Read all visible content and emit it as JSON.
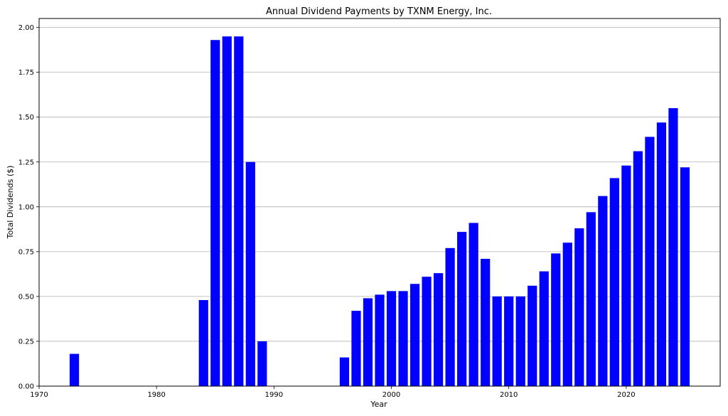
{
  "chart_data": {
    "type": "bar",
    "title": "Annual Dividend Payments by TXNM Energy, Inc.",
    "xlabel": "Year",
    "ylabel": "Total Dividends ($)",
    "xlim": [
      1970,
      2028
    ],
    "ylim": [
      0,
      2.05
    ],
    "xticks": [
      "1970",
      "1980",
      "1990",
      "2000",
      "2010",
      "2020"
    ],
    "yticks": [
      "0.00",
      "0.25",
      "0.50",
      "0.75",
      "1.00",
      "1.25",
      "1.50",
      "1.75",
      "2.00"
    ],
    "grid": "y",
    "bar_color": "#0000ff",
    "x": [
      1973,
      1984,
      1985,
      1986,
      1987,
      1988,
      1989,
      1996,
      1997,
      1998,
      1999,
      2000,
      2001,
      2002,
      2003,
      2004,
      2005,
      2006,
      2007,
      2008,
      2009,
      2010,
      2011,
      2012,
      2013,
      2014,
      2015,
      2016,
      2017,
      2018,
      2019,
      2020,
      2021,
      2022,
      2023,
      2024,
      2025
    ],
    "values": [
      0.18,
      0.48,
      1.93,
      1.95,
      1.95,
      1.25,
      0.25,
      0.16,
      0.42,
      0.49,
      0.51,
      0.53,
      0.53,
      0.57,
      0.61,
      0.63,
      0.77,
      0.86,
      0.91,
      0.71,
      0.5,
      0.5,
      0.5,
      0.56,
      0.64,
      0.74,
      0.8,
      0.88,
      0.97,
      1.06,
      1.16,
      1.23,
      1.31,
      1.39,
      1.47,
      1.55,
      1.22
    ]
  }
}
